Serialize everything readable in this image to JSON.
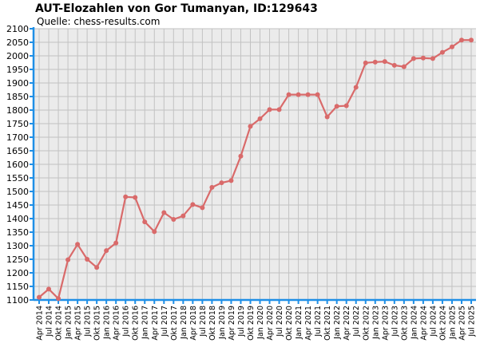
{
  "chart_data": {
    "type": "line",
    "title": "AUT-Elozahlen von Gor Tumanyan, ID:129643",
    "subtitle": "Quelle: chess-results.com",
    "xlabel": "",
    "ylabel": "",
    "ylim": [
      1100,
      2100
    ],
    "yticks": [
      1100,
      1150,
      1200,
      1250,
      1300,
      1350,
      1400,
      1450,
      1500,
      1550,
      1600,
      1650,
      1700,
      1750,
      1800,
      1850,
      1900,
      1950,
      2000,
      2050,
      2100
    ],
    "grid": true,
    "legend": "none",
    "colors": {
      "line": "#d96a6a",
      "plot_bg": "#ebebeb",
      "grid": "#c2c2c2",
      "axis": "#1f8fe6"
    },
    "x": [
      "Apr 2014",
      "Jul 2014",
      "Okt 2014",
      "Jan 2015",
      "Apr 2015",
      "Jul 2015",
      "Okt 2015",
      "Jan 2016",
      "Apr 2016",
      "Jul 2016",
      "Okt 2016",
      "Jan 2017",
      "Apr 2017",
      "Jul 2017",
      "Okt 2017",
      "Jan 2018",
      "Apr 2018",
      "Jul 2018",
      "Okt 2018",
      "Jan 2019",
      "Apr 2019",
      "Jul 2019",
      "Okt 2019",
      "Jan 2020",
      "Apr 2020",
      "Jul 2020",
      "Okt 2020",
      "Jan 2021",
      "Apr 2021",
      "Jul 2021",
      "Okt 2021",
      "Jan 2022",
      "Apr 2022",
      "Jul 2022",
      "Okt 2022",
      "Jan 2023",
      "Apr 2023",
      "Jul 2023",
      "Okt 2023",
      "Jan 2024",
      "Apr 2024",
      "Jul 2024",
      "Okt 2024",
      "Jan 2025",
      "Apr 2025",
      "Jul 2025"
    ],
    "series": [
      {
        "values": [
          1110,
          1140,
          1105,
          1248,
          1305,
          1250,
          1220,
          1282,
          1310,
          1480,
          1478,
          1388,
          1352,
          1422,
          1397,
          1410,
          1452,
          1440,
          1515,
          1532,
          1540,
          1630,
          1740,
          1768,
          1802,
          1802,
          1857,
          1857,
          1857,
          1857,
          1775,
          1814,
          1816,
          1884,
          1974,
          1977,
          1979,
          1965,
          1960,
          1990,
          1992,
          1990,
          2013,
          2033,
          2058,
          2058
        ]
      }
    ]
  }
}
